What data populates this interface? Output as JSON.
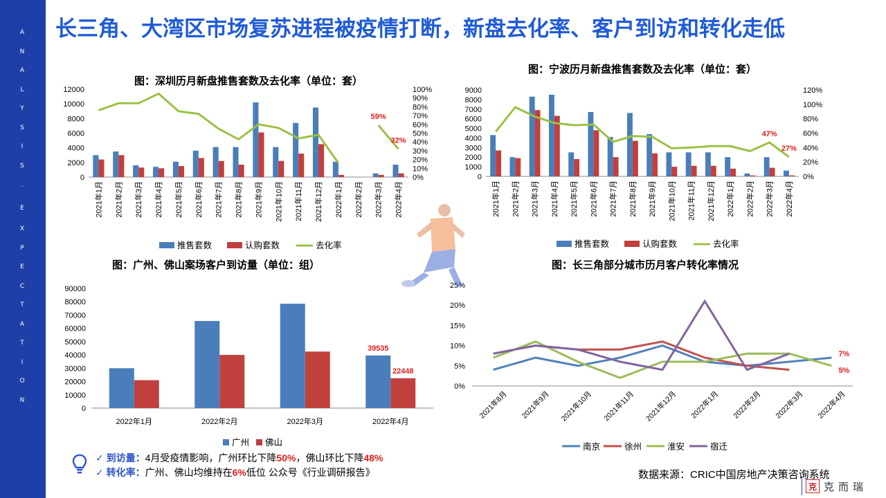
{
  "headline": "长三角、大湾区市场复苏进程被疫情打断，新盘去化率、客户到访和转化走低",
  "sidebar_text": [
    "A",
    "N",
    "A",
    "L",
    "Y",
    "S",
    "I",
    "S",
    "·",
    "E",
    "X",
    "P",
    "E",
    "C",
    "T",
    "A",
    "T",
    "I",
    "O",
    "N"
  ],
  "colors": {
    "blue": "#4a7ebb",
    "red": "#c0403e",
    "green": "#9ac144",
    "purple": "#7e5c97",
    "nanjing": "#4f81bd",
    "xuzhou": "#c0504d",
    "huaian": "#9bbb59",
    "suqian": "#8064a2",
    "label_red": "#e0201b",
    "headline": "#1f5bd6",
    "sidebar": "#1f3fa8"
  },
  "chart_data": [
    {
      "id": "shenzhen",
      "type": "bar",
      "title": "图：深圳历月新盘推售套数及去化率（单位：套）",
      "categories": [
        "2021年1月",
        "2021年2月",
        "2021年3月",
        "2021年4月",
        "2021年5月",
        "2021年6月",
        "2021年7月",
        "2021年8月",
        "2021年9月",
        "2021年10月",
        "2021年11月",
        "2021年12月",
        "2022年1月",
        "2022年2月",
        "2022年3月",
        "2022年4月"
      ],
      "series": [
        {
          "name": "推售套数",
          "kind": "bar",
          "values": [
            3000,
            3500,
            1600,
            1400,
            2100,
            3600,
            4100,
            4100,
            10200,
            4100,
            7400,
            9500,
            2100,
            0,
            500,
            1700
          ]
        },
        {
          "name": "认购套数",
          "kind": "bar",
          "values": [
            2400,
            3000,
            1300,
            1200,
            1500,
            2600,
            2200,
            1700,
            6100,
            2200,
            3200,
            4500,
            300,
            0,
            300,
            500
          ]
        },
        {
          "name": "去化率",
          "kind": "line",
          "axis": "right",
          "values": [
            76,
            84,
            84,
            95,
            75,
            72,
            55,
            43,
            60,
            56,
            44,
            48,
            16,
            null,
            59,
            32
          ]
        }
      ],
      "ylim_left": [
        0,
        12000
      ],
      "yticks_left": [
        "0",
        "2000",
        "4000",
        "6000",
        "8000",
        "10000",
        "12000"
      ],
      "ylim_right": [
        0,
        100
      ],
      "yticks_right": [
        "0%",
        "10%",
        "20%",
        "30%",
        "40%",
        "50%",
        "60%",
        "70%",
        "80%",
        "90%",
        "100%"
      ],
      "data_labels": [
        {
          "index": 14,
          "text": "59%"
        },
        {
          "index": 15,
          "text": "32%"
        }
      ]
    },
    {
      "id": "ningbo",
      "type": "bar",
      "title": "图：宁波历月新盘推售套数及去化率（单位：套）",
      "categories": [
        "2021年1月",
        "2021年2月",
        "2021年3月",
        "2021年4月",
        "2021年5月",
        "2021年6月",
        "2021年7月",
        "2021年8月",
        "2021年9月",
        "2021年10月",
        "2021年11月",
        "2021年12月",
        "2022年1月",
        "2022年2月",
        "2022年3月",
        "2022年4月"
      ],
      "series": [
        {
          "name": "推售套数",
          "kind": "bar",
          "values": [
            4300,
            2000,
            8300,
            8500,
            2500,
            6700,
            4100,
            6600,
            4400,
            2500,
            2500,
            2500,
            2000,
            300,
            2000,
            600
          ]
        },
        {
          "name": "认购套数",
          "kind": "bar",
          "values": [
            2700,
            1900,
            6900,
            6300,
            1800,
            4800,
            2000,
            3700,
            2400,
            1000,
            1100,
            1100,
            800,
            100,
            900,
            100
          ]
        },
        {
          "name": "去化率",
          "kind": "line",
          "axis": "right",
          "values": [
            62,
            96,
            83,
            74,
            71,
            72,
            48,
            56,
            55,
            39,
            40,
            42,
            42,
            35,
            47,
            27
          ]
        }
      ],
      "ylim_left": [
        0,
        9000
      ],
      "yticks_left": [
        "0",
        "1000",
        "2000",
        "3000",
        "4000",
        "5000",
        "6000",
        "7000",
        "8000",
        "9000"
      ],
      "ylim_right": [
        0,
        120
      ],
      "yticks_right": [
        "0%",
        "20%",
        "40%",
        "60%",
        "80%",
        "100%",
        "120%"
      ],
      "data_labels": [
        {
          "index": 14,
          "text": "47%"
        },
        {
          "index": 15,
          "text": "27%"
        }
      ]
    },
    {
      "id": "guangfo",
      "type": "bar",
      "title": "图：广州、佛山案场客户到访量（单位：组）",
      "categories": [
        "2022年1月",
        "2022年2月",
        "2022年3月",
        "2022年4月"
      ],
      "series": [
        {
          "name": "广州",
          "values": [
            30000,
            65500,
            78500,
            39535
          ]
        },
        {
          "name": "佛山",
          "values": [
            21000,
            40000,
            42500,
            22448
          ]
        }
      ],
      "ylim": [
        0,
        90000
      ],
      "yticks": [
        "0",
        "10000",
        "20000",
        "30000",
        "40000",
        "50000",
        "60000",
        "70000",
        "80000",
        "90000"
      ],
      "data_labels": [
        {
          "series": 0,
          "index": 3,
          "text": "39535"
        },
        {
          "series": 1,
          "index": 3,
          "text": "22448"
        }
      ]
    },
    {
      "id": "yrd",
      "type": "line",
      "title": "图：长三角部分城市历月客户转化率情况",
      "categories": [
        "2021年8月",
        "2021年9月",
        "2021年10月",
        "2021年11月",
        "2021年12月",
        "2022年1月",
        "2022年2月",
        "2022年3月",
        "2022年4月"
      ],
      "series": [
        {
          "name": "南京",
          "values": [
            4,
            7,
            5,
            7,
            10,
            6,
            5,
            6,
            7
          ]
        },
        {
          "name": "徐州",
          "values": [
            8,
            10,
            9,
            9,
            11,
            7,
            5,
            4,
            null
          ]
        },
        {
          "name": "淮安",
          "values": [
            7,
            11,
            6,
            2,
            6,
            6,
            8,
            8,
            5
          ]
        },
        {
          "name": "宿迁",
          "values": [
            8,
            10,
            9,
            6,
            4,
            21,
            4,
            8,
            null
          ]
        }
      ],
      "ylim": [
        0,
        25
      ],
      "yticks": [
        "0%",
        "5%",
        "10%",
        "15%",
        "20%",
        "25%"
      ],
      "data_labels": [
        {
          "series": 0,
          "index": 8,
          "text": "7%"
        },
        {
          "series": 2,
          "index": 8,
          "text": "5%"
        }
      ]
    }
  ],
  "notes": {
    "visits_label": "到访量：",
    "visits_text_1": "4月受疫情影响，广州环比下降",
    "visits_gz_drop": "50%",
    "visits_text_2": "，佛山环比下降",
    "visits_fs_drop": "48%",
    "conversion_label": "转化率：",
    "conversion_text_1": "广州、佛山均维持在",
    "conversion_value": "6%",
    "conversion_text_2": "低位 公众号《行业调研报告》",
    "check": "✓"
  },
  "source": "数据来源：CRIC中国房地产决策咨询系统",
  "logo": {
    "seal": "克",
    "text": "克而瑞"
  }
}
